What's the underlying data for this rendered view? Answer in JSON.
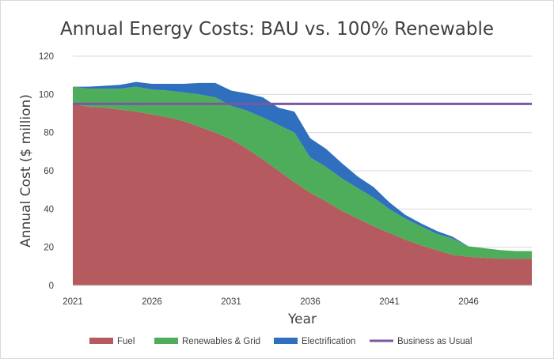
{
  "chart_data": {
    "type": "area",
    "title": "Annual Energy Costs: BAU vs. 100% Renewable",
    "xlabel": "Year",
    "ylabel": "Annual Cost ($ million)",
    "xlim": [
      2021,
      2050
    ],
    "ylim": [
      0,
      120
    ],
    "x_ticks": [
      2021,
      2026,
      2031,
      2036,
      2041,
      2046
    ],
    "y_ticks": [
      0,
      20,
      40,
      60,
      80,
      100,
      120
    ],
    "grid": "horizontal",
    "legend_position": "bottom",
    "x": [
      2021,
      2022,
      2023,
      2024,
      2025,
      2026,
      2027,
      2028,
      2029,
      2030,
      2031,
      2032,
      2033,
      2034,
      2035,
      2036,
      2037,
      2038,
      2039,
      2040,
      2041,
      2042,
      2043,
      2044,
      2045,
      2046,
      2047,
      2048,
      2049,
      2050
    ],
    "series": [
      {
        "name": "Fuel",
        "kind": "stacked-area",
        "color": "#b55a5f",
        "values": [
          95,
          93.5,
          93,
          92,
          91,
          89.5,
          88,
          86,
          83,
          80,
          76.5,
          71.5,
          66,
          60,
          54,
          48.5,
          44,
          39,
          35,
          31,
          27.5,
          24,
          21,
          18.5,
          16,
          15,
          14.5,
          14,
          14,
          14
        ]
      },
      {
        "name": "Renewables & Grid",
        "kind": "stacked-area",
        "color": "#4ead5b",
        "values": [
          9,
          9.5,
          10,
          11,
          13,
          13,
          14,
          15,
          17,
          18.5,
          17.5,
          20,
          22,
          24,
          26,
          18.5,
          18,
          17,
          16,
          15,
          12.5,
          11,
          10,
          8.5,
          8.5,
          5.5,
          5,
          4.5,
          4,
          4
        ]
      },
      {
        "name": "Electrification",
        "kind": "stacked-area",
        "color": "#2f6fbe",
        "values": [
          0,
          1,
          1.5,
          2,
          2.5,
          3,
          3.5,
          4.5,
          6,
          7.5,
          8,
          9,
          10.5,
          9,
          11,
          10,
          9.5,
          8,
          6,
          5.5,
          3.5,
          2,
          1.5,
          1.5,
          1,
          0,
          0,
          0,
          0,
          0
        ]
      },
      {
        "name": "Business as Usual",
        "kind": "line",
        "color": "#7b57a3",
        "values": [
          95,
          95,
          95,
          95,
          95,
          95,
          95,
          95,
          95,
          95,
          95,
          95,
          95,
          95,
          95,
          95,
          95,
          95,
          95,
          95,
          95,
          95,
          95,
          95,
          95,
          95,
          95,
          95,
          95,
          95
        ]
      }
    ]
  }
}
